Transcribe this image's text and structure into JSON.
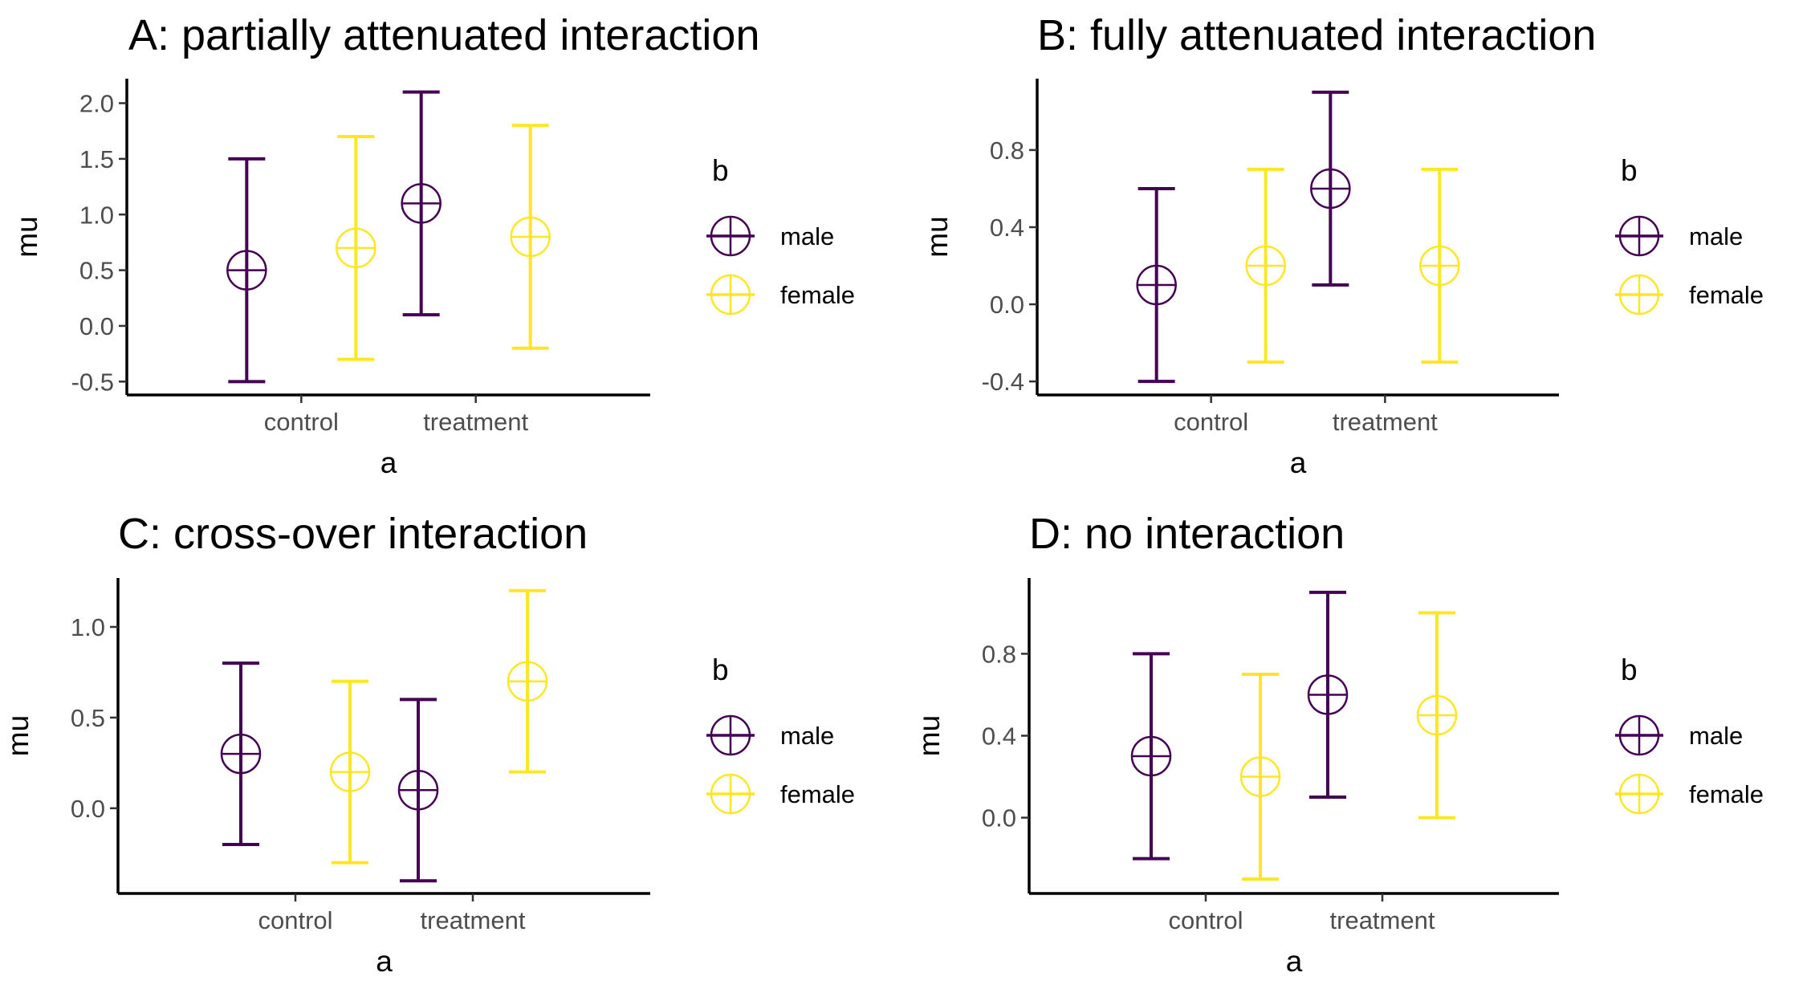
{
  "colors": {
    "male": "#440154",
    "female": "#FDE725",
    "axis": "#000000",
    "tick_text": "#4d4d4d"
  },
  "chart_data": [
    {
      "type": "errorbar",
      "title": "A: partially attenuated interaction",
      "xlabel": "a",
      "ylabel": "mu",
      "categories": [
        "control",
        "treatment"
      ],
      "yticks": [
        -0.5,
        0.0,
        0.5,
        1.0,
        1.5,
        2.0
      ],
      "ytick_labels": [
        "-0.5",
        "0.0",
        "0.5",
        "1.0",
        "1.5",
        "2.0"
      ],
      "ylim": [
        -0.62,
        2.22
      ],
      "legend": {
        "title": "b",
        "entries": [
          "male",
          "female"
        ]
      },
      "series": [
        {
          "name": "male",
          "mean": [
            0.5,
            1.1
          ],
          "lower": [
            -0.5,
            0.1
          ],
          "upper": [
            1.5,
            2.1
          ]
        },
        {
          "name": "female",
          "mean": [
            0.7,
            0.8
          ],
          "lower": [
            -0.3,
            -0.2
          ],
          "upper": [
            1.7,
            1.8
          ]
        }
      ]
    },
    {
      "type": "errorbar",
      "title": "B: fully attenuated interaction",
      "xlabel": "a",
      "ylabel": "mu",
      "categories": [
        "control",
        "treatment"
      ],
      "yticks": [
        -0.4,
        0.0,
        0.4,
        0.8
      ],
      "ytick_labels": [
        "-0.4",
        "0.0",
        "0.4",
        "0.8"
      ],
      "ylim": [
        -0.47,
        1.17
      ],
      "legend": {
        "title": "b",
        "entries": [
          "male",
          "female"
        ]
      },
      "series": [
        {
          "name": "male",
          "mean": [
            0.1,
            0.6
          ],
          "lower": [
            -0.4,
            0.1
          ],
          "upper": [
            0.6,
            1.1
          ]
        },
        {
          "name": "female",
          "mean": [
            0.2,
            0.2
          ],
          "lower": [
            -0.3,
            -0.3
          ],
          "upper": [
            0.7,
            0.7
          ]
        }
      ]
    },
    {
      "type": "errorbar",
      "title": "C: cross-over interaction",
      "xlabel": "a",
      "ylabel": "mu",
      "categories": [
        "control",
        "treatment"
      ],
      "yticks": [
        0.0,
        0.5,
        1.0
      ],
      "ytick_labels": [
        "0.0",
        "0.5",
        "1.0"
      ],
      "ylim": [
        -0.47,
        1.27
      ],
      "legend": {
        "title": "b",
        "entries": [
          "male",
          "female"
        ]
      },
      "series": [
        {
          "name": "male",
          "mean": [
            0.3,
            0.1
          ],
          "lower": [
            -0.2,
            -0.4
          ],
          "upper": [
            0.8,
            0.6
          ]
        },
        {
          "name": "female",
          "mean": [
            0.2,
            0.7
          ],
          "lower": [
            -0.3,
            0.2
          ],
          "upper": [
            0.7,
            1.2
          ]
        }
      ]
    },
    {
      "type": "errorbar",
      "title": "D: no interaction",
      "xlabel": "a",
      "ylabel": "mu",
      "categories": [
        "control",
        "treatment"
      ],
      "yticks": [
        0.0,
        0.4,
        0.8
      ],
      "ytick_labels": [
        "0.0",
        "0.4",
        "0.8"
      ],
      "ylim": [
        -0.37,
        1.17
      ],
      "legend": {
        "title": "b",
        "entries": [
          "male",
          "female"
        ]
      },
      "series": [
        {
          "name": "male",
          "mean": [
            0.3,
            0.6
          ],
          "lower": [
            -0.2,
            0.1
          ],
          "upper": [
            0.8,
            1.1
          ]
        },
        {
          "name": "female",
          "mean": [
            0.2,
            0.5
          ],
          "lower": [
            -0.3,
            0.0
          ],
          "upper": [
            0.7,
            1.0
          ]
        }
      ]
    }
  ]
}
